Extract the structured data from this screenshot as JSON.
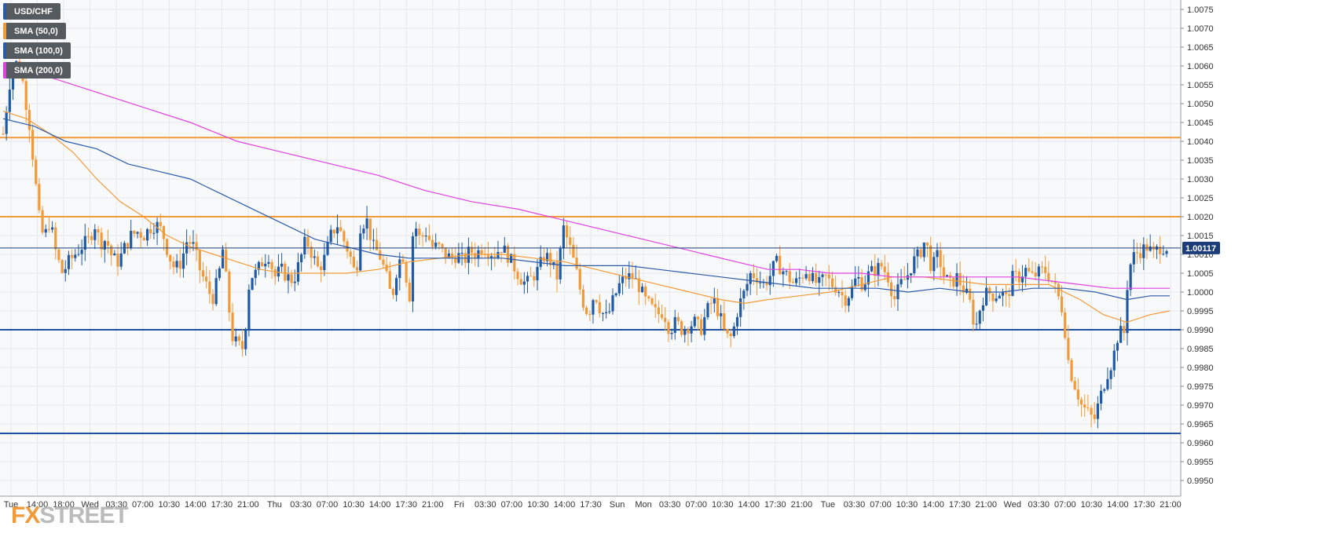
{
  "symbol": "USD/CHF",
  "legend": [
    {
      "label": "USD/CHF",
      "color": "#2b5aa8"
    },
    {
      "label": "SMA (50,0)",
      "color": "#f39a38"
    },
    {
      "label": "SMA (100,0)",
      "color": "#2b5aa8"
    },
    {
      "label": "SMA (200,0)",
      "color": "#e040e0"
    }
  ],
  "watermark": {
    "accent": "FX",
    "rest": "STREET"
  },
  "last_price_label": "1.00117",
  "colors": {
    "bull": "#1f5aa6",
    "bear": "#f39a38",
    "sma50": "#f39a38",
    "sma100": "#2b5aa8",
    "sma200": "#e040e0"
  },
  "chart_data": {
    "type": "candlestick",
    "ylim": [
      0.9945,
      1.0078
    ],
    "y_ticks": [
      "1.0075",
      "1.0070",
      "1.0065",
      "1.0060",
      "1.0055",
      "1.0050",
      "1.0045",
      "1.0040",
      "1.0035",
      "1.0030",
      "1.0025",
      "1.0020",
      "1.0015",
      "1.0010",
      "1.0005",
      "1.0000",
      "0.9995",
      "0.9990",
      "0.9985",
      "0.9980",
      "0.9975",
      "0.9970",
      "0.9965",
      "0.9960",
      "0.9955",
      "0.9950"
    ],
    "x_ticks": [
      "Tue",
      "14:00",
      "18:00",
      "Wed",
      "03:30",
      "07:00",
      "10:30",
      "14:00",
      "17:30",
      "21:00",
      "Thu",
      "03:30",
      "07:00",
      "10:30",
      "14:00",
      "17:30",
      "21:00",
      "Fri",
      "03:30",
      "07:00",
      "10:30",
      "14:00",
      "17:30",
      "Sun",
      "Mon",
      "03:30",
      "07:00",
      "10:30",
      "14:00",
      "17:30",
      "21:00",
      "Tue",
      "03:30",
      "07:00",
      "10:30",
      "14:00",
      "17:30",
      "21:00",
      "Wed",
      "03:30",
      "07:00",
      "10:30",
      "14:00",
      "17:30",
      "21:00"
    ],
    "grid": true,
    "horizontal_levels": [
      {
        "value": 1.0041,
        "color": "#f39a38"
      },
      {
        "value": 1.002,
        "color": "#f39a38"
      },
      {
        "value": 0.999,
        "color": "#1f4fa0"
      },
      {
        "value": 0.99625,
        "color": "#1f4fa0"
      }
    ],
    "last_price": 1.00117,
    "close_path": [
      [
        0,
        1.0042
      ],
      [
        8,
        1.0055
      ],
      [
        14,
        1.0061
      ],
      [
        22,
        1.006
      ],
      [
        28,
        1.0052
      ],
      [
        34,
        1.0044
      ],
      [
        40,
        1.0032
      ],
      [
        46,
        1.002
      ],
      [
        52,
        1.0014
      ],
      [
        60,
        1.0019
      ],
      [
        68,
        1.001
      ],
      [
        76,
        1.0005
      ],
      [
        84,
        1.0008
      ],
      [
        92,
        1.001
      ],
      [
        100,
        1.0012
      ],
      [
        110,
        1.0014
      ],
      [
        118,
        1.0018
      ],
      [
        124,
        1.0013
      ],
      [
        132,
        1.0014
      ],
      [
        140,
        1.0009
      ],
      [
        148,
        1.0008
      ],
      [
        156,
        1.0012
      ],
      [
        164,
        1.0015
      ],
      [
        172,
        1.0016
      ],
      [
        180,
        1.0015
      ],
      [
        188,
        1.0017
      ],
      [
        196,
        1.0018
      ],
      [
        204,
        1.0016
      ],
      [
        212,
        1.001
      ],
      [
        220,
        1.0006
      ],
      [
        228,
        1.0008
      ],
      [
        236,
        1.0014
      ],
      [
        244,
        1.0012
      ],
      [
        252,
        1.0006
      ],
      [
        260,
        1.0002
      ],
      [
        268,
        0.9998
      ],
      [
        276,
        1.0004
      ],
      [
        282,
        1.0012
      ],
      [
        288,
        0.9998
      ],
      [
        294,
        0.9988
      ],
      [
        300,
        0.9986
      ],
      [
        308,
        0.9985
      ],
      [
        316,
        1.0004
      ],
      [
        324,
        1.0005
      ],
      [
        332,
        1.0008
      ],
      [
        340,
        1.001
      ],
      [
        348,
        1.0004
      ],
      [
        356,
        1.0006
      ],
      [
        364,
        1.0004
      ],
      [
        372,
        1.0003
      ],
      [
        380,
        1.0008
      ],
      [
        388,
        1.0014
      ],
      [
        396,
        1.001
      ],
      [
        404,
        1.0006
      ],
      [
        412,
        1.0009
      ],
      [
        420,
        1.0015
      ],
      [
        428,
        1.0018
      ],
      [
        436,
        1.0014
      ],
      [
        444,
        1.001
      ],
      [
        452,
        1.0004
      ],
      [
        458,
        1.0018
      ],
      [
        466,
        1.0019
      ],
      [
        474,
        1.0012
      ],
      [
        482,
        1.001
      ],
      [
        490,
        1.0005
      ],
      [
        498,
        0.9998
      ],
      [
        506,
        1.0008
      ],
      [
        514,
        1.001
      ],
      [
        520,
        0.9996
      ],
      [
        526,
        1.0019
      ],
      [
        534,
        1.0014
      ],
      [
        542,
        1.0016
      ],
      [
        550,
        1.0012
      ],
      [
        558,
        1.0012
      ],
      [
        566,
        1.001
      ],
      [
        574,
        1.0009
      ],
      [
        582,
        1.001
      ],
      [
        590,
        1.0008
      ],
      [
        598,
        1.0011
      ],
      [
        606,
        1.001
      ],
      [
        614,
        1.0012
      ],
      [
        622,
        1.0011
      ],
      [
        630,
        1.001
      ],
      [
        638,
        1.0012
      ],
      [
        646,
        1.001
      ],
      [
        654,
        1.0007
      ],
      [
        662,
        1.0004
      ],
      [
        670,
        1.0002
      ],
      [
        678,
        1.0004
      ],
      [
        686,
        1.0006
      ],
      [
        694,
        1.001
      ],
      [
        702,
        1.0008
      ],
      [
        710,
        1.0004
      ],
      [
        718,
        1.0017
      ],
      [
        726,
        1.0012
      ],
      [
        734,
        1.0006
      ],
      [
        742,
        0.9998
      ],
      [
        750,
        0.9994
      ],
      [
        758,
        1.0
      ],
      [
        766,
        0.9995
      ],
      [
        774,
        0.9993
      ],
      [
        782,
        0.9998
      ],
      [
        790,
        1.0002
      ],
      [
        798,
        1.0004
      ],
      [
        806,
        1.0004
      ],
      [
        814,
        1.0002
      ],
      [
        822,
        0.9998
      ],
      [
        830,
        0.9996
      ],
      [
        838,
        0.9994
      ],
      [
        846,
        0.9995
      ],
      [
        854,
        0.999
      ],
      [
        862,
        0.9992
      ],
      [
        870,
        0.999
      ],
      [
        878,
        0.9991
      ],
      [
        886,
        0.9992
      ],
      [
        894,
        0.999
      ],
      [
        902,
        0.9995
      ],
      [
        910,
        0.9998
      ],
      [
        918,
        0.9994
      ],
      [
        926,
        0.9988
      ],
      [
        934,
        0.9988
      ],
      [
        942,
        0.9996
      ],
      [
        950,
        1.0
      ],
      [
        958,
        1.0005
      ],
      [
        966,
        1.0004
      ],
      [
        974,
        1.0002
      ],
      [
        982,
        1.0004
      ],
      [
        990,
        1.0008
      ],
      [
        998,
        1.0006
      ],
      [
        1006,
        1.0004
      ],
      [
        1014,
        1.0002
      ],
      [
        1022,
        1.0004
      ],
      [
        1030,
        1.0006
      ],
      [
        1038,
        1.0003
      ],
      [
        1046,
        1.0002
      ],
      [
        1054,
        1.0004
      ],
      [
        1062,
        1.0002
      ],
      [
        1070,
        1.0001
      ],
      [
        1078,
        0.9998
      ],
      [
        1086,
        1.0
      ],
      [
        1094,
        1.0004
      ],
      [
        1102,
        1.0002
      ],
      [
        1110,
        1.0005
      ],
      [
        1118,
        1.0006
      ],
      [
        1126,
        1.0007
      ],
      [
        1134,
        1.0004
      ],
      [
        1142,
        0.9998
      ],
      [
        1150,
        1.0002
      ],
      [
        1158,
        1.0004
      ],
      [
        1166,
        1.0008
      ],
      [
        1174,
        1.001
      ],
      [
        1182,
        1.0014
      ],
      [
        1190,
        1.0006
      ],
      [
        1198,
        1.001
      ],
      [
        1206,
        1.0004
      ],
      [
        1214,
        1.0002
      ],
      [
        1222,
        1.0004
      ],
      [
        1230,
        1.0001
      ],
      [
        1238,
        0.9998
      ],
      [
        1246,
        0.999
      ],
      [
        1254,
        0.9998
      ],
      [
        1262,
        1.0
      ],
      [
        1270,
        0.9999
      ],
      [
        1278,
        1.0
      ],
      [
        1286,
        0.9998
      ],
      [
        1294,
        1.0004
      ],
      [
        1302,
        1.0004
      ],
      [
        1310,
        1.0006
      ],
      [
        1318,
        1.0004
      ],
      [
        1326,
        1.0005
      ],
      [
        1334,
        1.0006
      ],
      [
        1342,
        1.0004
      ],
      [
        1350,
        1.0
      ],
      [
        1358,
        0.9995
      ],
      [
        1366,
        0.998
      ],
      [
        1374,
        0.9975
      ],
      [
        1382,
        0.997
      ],
      [
        1390,
        0.9968
      ],
      [
        1398,
        0.9966
      ],
      [
        1406,
        0.9972
      ],
      [
        1414,
        0.9978
      ],
      [
        1422,
        0.9982
      ],
      [
        1430,
        0.999
      ],
      [
        1436,
        0.9988
      ],
      [
        1442,
        1.0006
      ],
      [
        1450,
        1.001
      ],
      [
        1458,
        1.0011
      ],
      [
        1466,
        1.0012
      ],
      [
        1474,
        1.001
      ],
      [
        1482,
        1.0012
      ],
      [
        1490,
        1.0012
      ]
    ],
    "series": [
      {
        "name": "SMA (50,0)",
        "points": [
          [
            0,
            1.0048
          ],
          [
            30,
            1.0046
          ],
          [
            60,
            1.0042
          ],
          [
            90,
            1.0037
          ],
          [
            120,
            1.003
          ],
          [
            150,
            1.0024
          ],
          [
            180,
            1.002
          ],
          [
            210,
            1.0015
          ],
          [
            240,
            1.0012
          ],
          [
            270,
            1.001
          ],
          [
            300,
            1.0008
          ],
          [
            330,
            1.0006
          ],
          [
            360,
            1.0005
          ],
          [
            400,
            1.0005
          ],
          [
            440,
            1.0005
          ],
          [
            480,
            1.0006
          ],
          [
            520,
            1.0008
          ],
          [
            560,
            1.0009
          ],
          [
            600,
            1.001
          ],
          [
            640,
            1.001
          ],
          [
            680,
            1.0009
          ],
          [
            720,
            1.0008
          ],
          [
            760,
            1.0006
          ],
          [
            800,
            1.0004
          ],
          [
            840,
            1.0002
          ],
          [
            880,
            1.0
          ],
          [
            920,
            0.9998
          ],
          [
            950,
            0.9997
          ],
          [
            980,
            0.9998
          ],
          [
            1020,
            0.9999
          ],
          [
            1060,
            1.0
          ],
          [
            1100,
            1.0002
          ],
          [
            1140,
            1.0004
          ],
          [
            1180,
            1.0004
          ],
          [
            1220,
            1.0003
          ],
          [
            1260,
            1.0002
          ],
          [
            1300,
            1.0002
          ],
          [
            1340,
            1.0002
          ],
          [
            1380,
            0.9998
          ],
          [
            1410,
            0.9994
          ],
          [
            1440,
            0.9992
          ],
          [
            1470,
            0.9994
          ],
          [
            1495,
            0.9995
          ]
        ]
      },
      {
        "name": "SMA (100,0)",
        "points": [
          [
            0,
            1.0046
          ],
          [
            40,
            1.0044
          ],
          [
            80,
            1.004
          ],
          [
            120,
            1.0038
          ],
          [
            160,
            1.0034
          ],
          [
            200,
            1.0032
          ],
          [
            240,
            1.003
          ],
          [
            280,
            1.0026
          ],
          [
            320,
            1.0022
          ],
          [
            360,
            1.0018
          ],
          [
            400,
            1.0014
          ],
          [
            440,
            1.0012
          ],
          [
            480,
            1.001
          ],
          [
            520,
            1.0009
          ],
          [
            560,
            1.0009
          ],
          [
            600,
            1.0009
          ],
          [
            640,
            1.0009
          ],
          [
            680,
            1.0008
          ],
          [
            720,
            1.0007
          ],
          [
            760,
            1.0007
          ],
          [
            800,
            1.0007
          ],
          [
            840,
            1.0006
          ],
          [
            880,
            1.0005
          ],
          [
            920,
            1.0004
          ],
          [
            960,
            1.0003
          ],
          [
            1000,
            1.0002
          ],
          [
            1040,
            1.0001
          ],
          [
            1080,
            1.0001
          ],
          [
            1120,
            1.0001
          ],
          [
            1160,
            1.0
          ],
          [
            1200,
            1.0001
          ],
          [
            1240,
            1.0
          ],
          [
            1280,
            1.0
          ],
          [
            1320,
            1.0001
          ],
          [
            1360,
            1.0001
          ],
          [
            1400,
            1.0
          ],
          [
            1440,
            0.9998
          ],
          [
            1470,
            0.9999
          ],
          [
            1495,
            0.9999
          ]
        ]
      },
      {
        "name": "SMA (200,0)",
        "points": [
          [
            0,
            1.006
          ],
          [
            60,
            1.0057
          ],
          [
            120,
            1.0053
          ],
          [
            180,
            1.0049
          ],
          [
            240,
            1.0045
          ],
          [
            300,
            1.004
          ],
          [
            360,
            1.0037
          ],
          [
            420,
            1.0034
          ],
          [
            480,
            1.0031
          ],
          [
            540,
            1.0027
          ],
          [
            600,
            1.0024
          ],
          [
            660,
            1.0022
          ],
          [
            720,
            1.0019
          ],
          [
            780,
            1.0016
          ],
          [
            840,
            1.0013
          ],
          [
            900,
            1.001
          ],
          [
            940,
            1.0008
          ],
          [
            980,
            1.0006
          ],
          [
            1020,
            1.0006
          ],
          [
            1060,
            1.0005
          ],
          [
            1100,
            1.0005
          ],
          [
            1140,
            1.0004
          ],
          [
            1180,
            1.0004
          ],
          [
            1220,
            1.0004
          ],
          [
            1260,
            1.0004
          ],
          [
            1300,
            1.0004
          ],
          [
            1340,
            1.0003
          ],
          [
            1380,
            1.0002
          ],
          [
            1420,
            1.0001
          ],
          [
            1460,
            1.0001
          ],
          [
            1495,
            1.0001
          ]
        ]
      }
    ]
  }
}
